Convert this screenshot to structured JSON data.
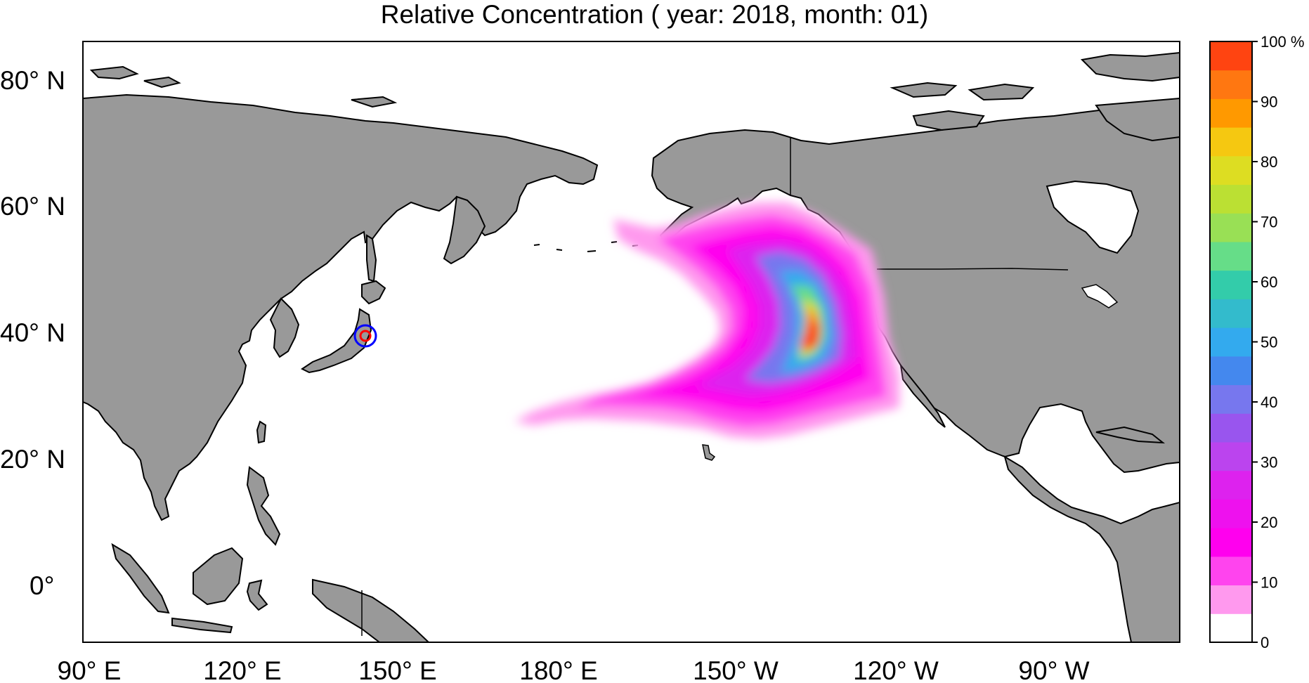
{
  "title": "Relative Concentration ( year: 2018, month: 01)",
  "map": {
    "lat_labels": [
      "80° N",
      "60° N",
      "40° N",
      "20° N",
      "0°"
    ],
    "lon_labels": [
      "90° E",
      "120° E",
      "150° E",
      "180° E",
      "150° W",
      "120° W",
      "90° W"
    ],
    "land_color": "#999999",
    "ocean_color": "#ffffff",
    "source_marker": {
      "inner_color": "#ff0000",
      "outer_color": "#0000ff"
    }
  },
  "colorbar": {
    "unit": "%",
    "tick_labels": [
      "100 %",
      "90",
      "80",
      "70",
      "60",
      "50",
      "40",
      "30",
      "20",
      "10",
      "0"
    ],
    "bands": [
      "#ffffff",
      "#ff99ee",
      "#ff44ee",
      "#ff00ee",
      "#ee11ee",
      "#dd22ee",
      "#bb44ee",
      "#9955ee",
      "#7777ee",
      "#4488ee",
      "#33aaee",
      "#33bbcc",
      "#33ccaa",
      "#66dd88",
      "#99e055",
      "#bbe033",
      "#dddd22",
      "#f5c811",
      "#ff9900",
      "#ff7711",
      "#ff4411"
    ]
  }
}
